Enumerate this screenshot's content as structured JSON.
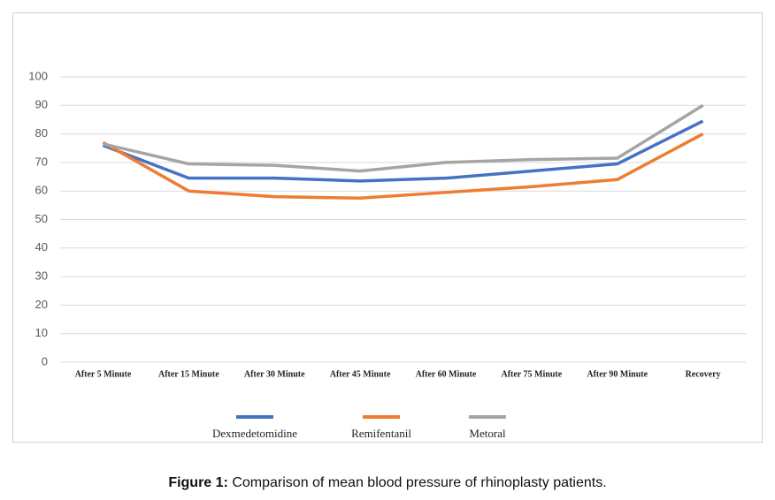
{
  "chart_data": {
    "type": "line",
    "categories": [
      "After 5 Minute",
      "After 15 Minute",
      "After 30 Minute",
      "After 45 Minute",
      "After 60 Minute",
      "After 75 Minute",
      "After 90 Minute",
      "Recovery"
    ],
    "series": [
      {
        "name": "Dexmedetomidine",
        "color": "#4472c4",
        "values": [
          76,
          64.5,
          64.5,
          63.5,
          64.5,
          67,
          69.5,
          84.5
        ]
      },
      {
        "name": "Remifentanil",
        "color": "#ed7d31",
        "values": [
          77,
          60,
          58,
          57.5,
          59.5,
          61.5,
          64,
          80
        ]
      },
      {
        "name": "Metoral",
        "color": "#a5a5a5",
        "values": [
          76.5,
          69.5,
          69,
          67,
          70,
          71,
          71.5,
          90
        ]
      }
    ],
    "ylim": [
      0,
      100
    ],
    "yticks": [
      0,
      10,
      20,
      30,
      40,
      50,
      60,
      70,
      80,
      90,
      100
    ],
    "grid": true,
    "legend": "bottom",
    "caption_label": "Figure 1:",
    "caption": "Comparison of mean blood pressure of rhinoplasty patients."
  }
}
